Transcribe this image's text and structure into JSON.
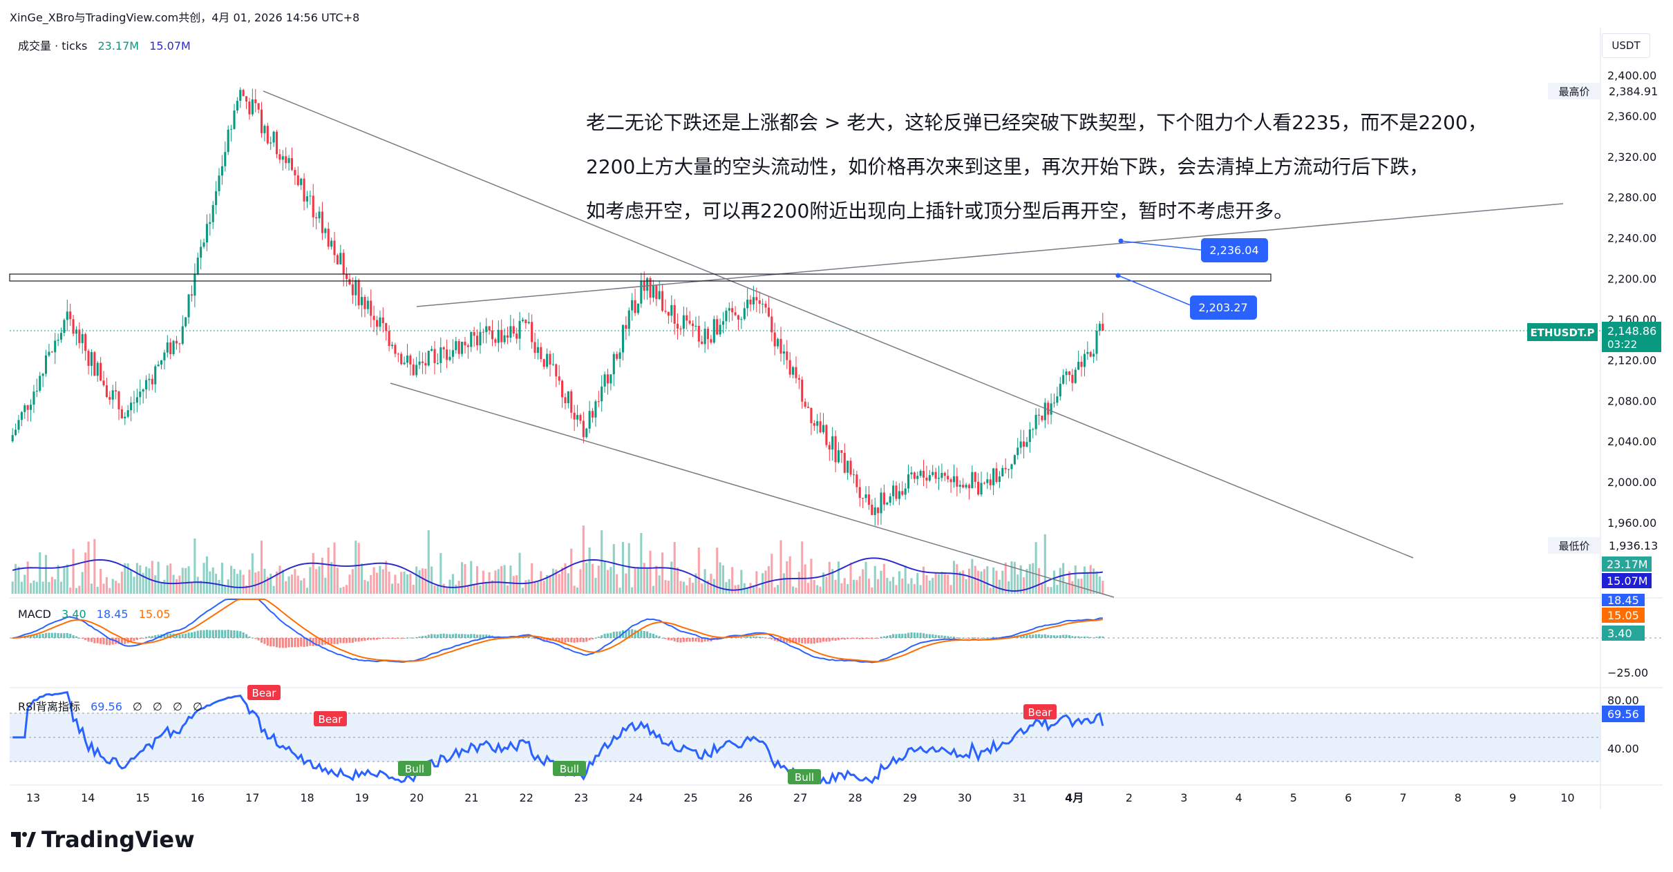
{
  "header": {
    "title": "XinGe_XBro与TradingView.com共创，4月 01, 2026 14:56 UTC+8"
  },
  "volume_legend": {
    "name": "成交量 · ticks",
    "v1": "23.17M",
    "v2": "15.07M"
  },
  "macd_legend": {
    "name": "MACD",
    "v1": "3.40",
    "v2": "18.45",
    "v3": "15.05"
  },
  "rsi_legend": {
    "name": "RSI背离指标",
    "v1": "69.56",
    "v2": "∅",
    "v3": "∅",
    "v4": "∅",
    "v5": "∅"
  },
  "annotation": {
    "lines": [
      "老二无论下跌还是上涨都会 > 老大，这轮反弹已经突破下跌契型，下个阻力个人看2235，而不是2200，",
      "2200上方大量的空头流动性，如价格再次来到这里，再次开始下跌，会去清掉上方流动行后下跌，",
      "如考虑开空，可以再2200附近出现向上插针或顶分型后再开空，暂时不考虑开多。"
    ]
  },
  "currency": "USDT",
  "price_axis": {
    "ticks": [
      "2,400.00",
      "2,360.00",
      "2,320.00",
      "2,280.00",
      "2,240.00",
      "2,200.00",
      "2,160.00",
      "2,120.00",
      "2,080.00",
      "2,040.00",
      "2,000.00",
      "1,960.00"
    ],
    "high_label": "最高价",
    "high_value": "2,384.91",
    "low_label": "最低价",
    "low_value": "1,936.13",
    "symbol": "ETHUSDT.P",
    "last_price": "2,148.86",
    "countdown": "03:22"
  },
  "callouts": {
    "upper": "2,236.04",
    "lower": "2,203.27"
  },
  "volume_badges": {
    "v1": "23.17M",
    "v2": "15.07M"
  },
  "macd_axis": {
    "b1": "18.45",
    "b2": "15.05",
    "b3": "3.40",
    "tick": "−25.00"
  },
  "rsi_axis": {
    "t80": "80.00",
    "t40": "40.00",
    "badge": "69.56"
  },
  "rsi_signals": [
    "Bear",
    "Bear",
    "Bull",
    "Bull",
    "Bull",
    "Bear"
  ],
  "x_axis": [
    "13",
    "14",
    "15",
    "16",
    "17",
    "18",
    "19",
    "20",
    "21",
    "22",
    "23",
    "24",
    "25",
    "26",
    "27",
    "28",
    "29",
    "30",
    "31",
    "4月",
    "2",
    "3",
    "4",
    "5",
    "6",
    "7",
    "8",
    "9",
    "10"
  ],
  "colors": {
    "up": "#089981",
    "down": "#f23645",
    "rsi": "#2962ff",
    "macd": "#2962ff",
    "signal": "#ff6d00",
    "vol_ma": "#2a2ad0",
    "badge_blue": "#2962ff"
  },
  "brand": "TradingView",
  "chart_data": {
    "type": "candlestick",
    "symbol": "ETHUSDT.P",
    "y_range": [
      1935,
      2410
    ],
    "x_categories": [
      "13",
      "14",
      "15",
      "16",
      "17",
      "18",
      "19",
      "20",
      "21",
      "22",
      "23",
      "24",
      "25",
      "26",
      "27",
      "28",
      "29",
      "30",
      "31",
      "4月"
    ],
    "close_path_approx": [
      {
        "x": "13",
        "y": 2040
      },
      {
        "x": "14",
        "y": 2160
      },
      {
        "x": "15",
        "y": 2065
      },
      {
        "x": "16",
        "y": 2150
      },
      {
        "x": "17",
        "y": 2385
      },
      {
        "x": "18",
        "y": 2300
      },
      {
        "x": "19",
        "y": 2190
      },
      {
        "x": "20",
        "y": 2110
      },
      {
        "x": "21",
        "y": 2140
      },
      {
        "x": "22",
        "y": 2150
      },
      {
        "x": "23",
        "y": 2050
      },
      {
        "x": "24",
        "y": 2195
      },
      {
        "x": "25",
        "y": 2140
      },
      {
        "x": "26",
        "y": 2180
      },
      {
        "x": "27",
        "y": 2060
      },
      {
        "x": "28",
        "y": 1975
      },
      {
        "x": "29",
        "y": 2010
      },
      {
        "x": "30",
        "y": 1995
      },
      {
        "x": "31",
        "y": 2070
      },
      {
        "x": "4月",
        "y": 2148.86
      }
    ],
    "high": 2384.91,
    "low": 1936.13,
    "last": 2148.86,
    "horizontal_zone": [
      2197,
      2203.27
    ],
    "targets": [
      2236.04,
      2203.27
    ],
    "rsi_last": 69.56,
    "macd": {
      "macd": 18.45,
      "signal": 15.05,
      "hist": 3.4
    }
  }
}
